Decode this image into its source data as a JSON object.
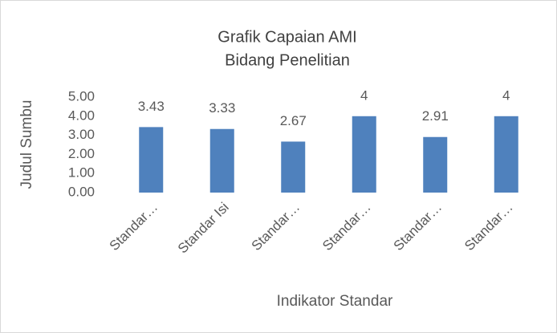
{
  "chart_data": {
    "type": "bar",
    "title": [
      "Grafik Capaian AMI",
      "Bidang Penelitian"
    ],
    "x_label": "Indikator Standar",
    "y_label": "Judul Sumbu",
    "categories": [
      "Standar…",
      "Standar Isi",
      "Standar…",
      "Standar…",
      "Standar…",
      "Standar…"
    ],
    "values": [
      3.43,
      3.33,
      2.67,
      4,
      2.91,
      4
    ],
    "color": "#4f81bd",
    "ylim": [
      0,
      5
    ],
    "yticks": [
      {
        "value": 0,
        "label": "0.00"
      },
      {
        "value": 1,
        "label": "1.00"
      },
      {
        "value": 2,
        "label": "2.00"
      },
      {
        "value": 3,
        "label": "3.00"
      },
      {
        "value": 4,
        "label": "4.00"
      },
      {
        "value": 5,
        "label": "5.00"
      }
    ],
    "grid": false
  }
}
